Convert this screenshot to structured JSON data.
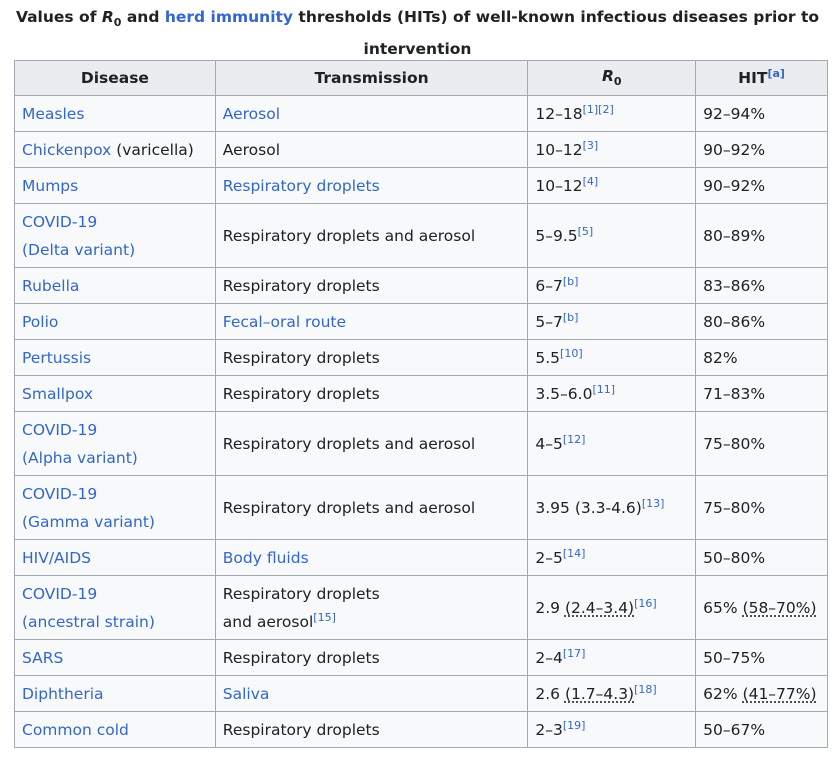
{
  "caption": {
    "pre": "Values of ",
    "r": "R",
    "r_sub": "0",
    "mid": " and ",
    "link": "herd immunity",
    "post": " thresholds (HITs) of well-known infectious diseases prior to intervention"
  },
  "headers": {
    "disease": "Disease",
    "transmission": "Transmission",
    "r0": "R",
    "r0_sub": "0",
    "hit": "HIT",
    "hit_note": "[a]"
  },
  "rows": [
    {
      "d1": "Measles",
      "d2": "",
      "dlink": true,
      "t1": "Aerosol",
      "t2": "",
      "tnote": "",
      "tlink": true,
      "r": "12–18",
      "rci": "",
      "rnote": "[1][2]",
      "h": "92–94%",
      "hci": "",
      "two": false
    },
    {
      "d1": "Chickenpox",
      "d2": " (varicella)",
      "dlink": true,
      "t1": "Aerosol",
      "t2": "",
      "tnote": "",
      "tlink": false,
      "r": "10–12",
      "rci": "",
      "rnote": "[3]",
      "h": "90–92%",
      "hci": "",
      "two": false
    },
    {
      "d1": "Mumps",
      "d2": "",
      "dlink": true,
      "t1": "Respiratory droplets",
      "t2": "",
      "tnote": "",
      "tlink": true,
      "r": "10–12",
      "rci": "",
      "rnote": "[4]",
      "h": "90–92%",
      "hci": "",
      "two": false
    },
    {
      "d1": "COVID-19",
      "d2": "(Delta variant)",
      "dlink": true,
      "t1": "Respiratory droplets and aerosol",
      "t2": "",
      "tnote": "",
      "tlink": false,
      "r": "5–9.5",
      "rci": "",
      "rnote": "[5]",
      "h": "80–89%",
      "hci": "",
      "two": true
    },
    {
      "d1": "Rubella",
      "d2": "",
      "dlink": true,
      "t1": "Respiratory droplets",
      "t2": "",
      "tnote": "",
      "tlink": false,
      "r": "6–7",
      "rci": "",
      "rnote": "[b]",
      "h": "83–86%",
      "hci": "",
      "two": false
    },
    {
      "d1": "Polio",
      "d2": "",
      "dlink": true,
      "t1": "Fecal–oral route",
      "t2": "",
      "tnote": "",
      "tlink": true,
      "r": "5–7",
      "rci": "",
      "rnote": "[b]",
      "h": "80–86%",
      "hci": "",
      "two": false
    },
    {
      "d1": "Pertussis",
      "d2": "",
      "dlink": true,
      "t1": "Respiratory droplets",
      "t2": "",
      "tnote": "",
      "tlink": false,
      "r": "5.5",
      "rci": "",
      "rnote": "[10]",
      "h": "82%",
      "hci": "",
      "two": false
    },
    {
      "d1": "Smallpox",
      "d2": "",
      "dlink": true,
      "t1": "Respiratory droplets",
      "t2": "",
      "tnote": "",
      "tlink": false,
      "r": "3.5–6.0",
      "rci": "",
      "rnote": "[11]",
      "h": "71–83%",
      "hci": "",
      "two": false
    },
    {
      "d1": "COVID-19",
      "d2": "(Alpha variant)",
      "dlink": true,
      "t1": "Respiratory droplets and aerosol",
      "t2": "",
      "tnote": "",
      "tlink": false,
      "r": "4–5",
      "rci": "",
      "rnote": "[12]",
      "h": "75–80%",
      "hci": "",
      "two": true
    },
    {
      "d1": "COVID-19",
      "d2": "(Gamma variant)",
      "dlink": true,
      "t1": "Respiratory droplets and aerosol",
      "t2": "",
      "tnote": "",
      "tlink": false,
      "r": "3.95 (3.3-4.6)",
      "rci": "",
      "rnote": "[13]",
      "h": "75–80%",
      "hci": "",
      "two": true
    },
    {
      "d1": "HIV/AIDS",
      "d2": "",
      "dlink": true,
      "t1": "Body fluids",
      "t2": "",
      "tnote": "",
      "tlink": true,
      "r": "2–5",
      "rci": "",
      "rnote": "[14]",
      "h": "50–80%",
      "hci": "",
      "two": false
    },
    {
      "d1": "COVID-19",
      "d2": "(ancestral strain)",
      "dlink": true,
      "t1": "Respiratory droplets",
      "t2": "and aerosol",
      "tnote": "[15]",
      "tlink": false,
      "r": "2.9 ",
      "rci": "(2.4–3.4)",
      "rnote": "[16]",
      "h": "65% ",
      "hci": "(58–70%)",
      "two": true
    },
    {
      "d1": "SARS",
      "d2": "",
      "dlink": true,
      "t1": "Respiratory droplets",
      "t2": "",
      "tnote": "",
      "tlink": false,
      "r": "2–4",
      "rci": "",
      "rnote": "[17]",
      "h": "50–75%",
      "hci": "",
      "two": false
    },
    {
      "d1": "Diphtheria",
      "d2": "",
      "dlink": true,
      "t1": "Saliva",
      "t2": "",
      "tnote": "",
      "tlink": true,
      "r": "2.6 ",
      "rci": "(1.7–4.3)",
      "rnote": "[18]",
      "h": "62% ",
      "hci": "(41–77%)",
      "two": false
    },
    {
      "d1": "Common cold",
      "d2": "",
      "dlink": true,
      "t1": "Respiratory droplets",
      "t2": "",
      "tnote": "",
      "tlink": false,
      "r": "2–3",
      "rci": "",
      "rnote": "[19]",
      "h": "50–67%",
      "hci": "",
      "two": false
    }
  ]
}
